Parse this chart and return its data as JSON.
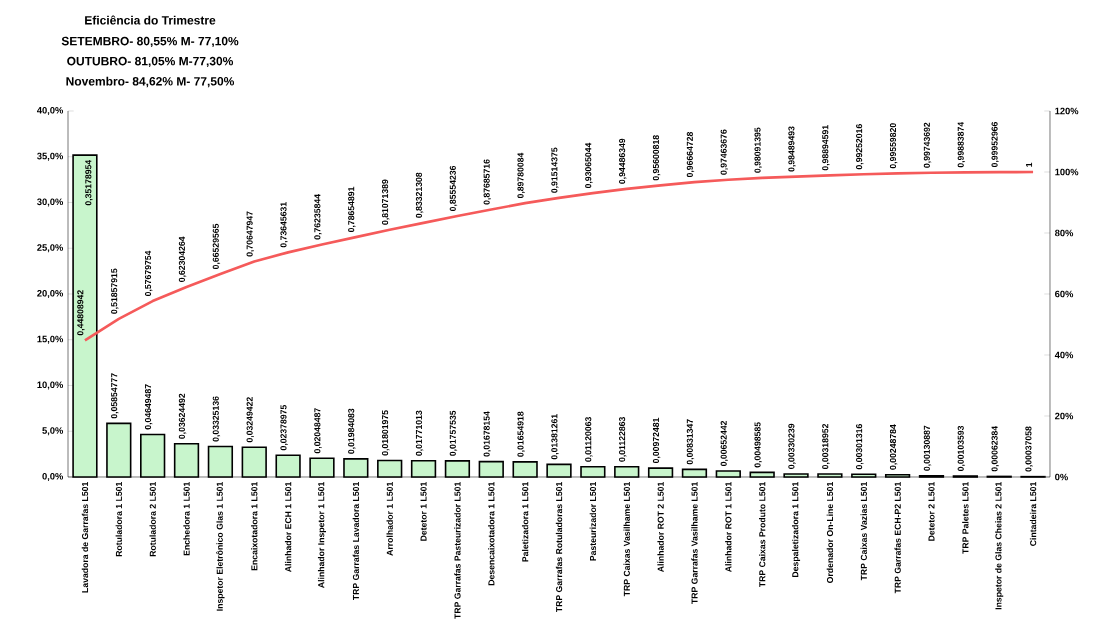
{
  "chart_data": {
    "type": "bar",
    "title": "Eficiência do Trimestre",
    "annotations": [
      "SETEMBRO- 80,55% M- 77,10%",
      "OUTUBRO- 81,05%   M-77,30%",
      "Novembro- 84,62% M- 77,50%"
    ],
    "categories": [
      "Lavadora de Garrafas L501",
      "Rotuladora 1 L501",
      "Rotuladora 2 L501",
      "Enchedora 1 L501",
      "Inspetor Eletrônico Glas 1 L501",
      "Encaixotadora 1 L501",
      "Alinhador ECH 1 L501",
      "Alinhador Inspetor 1 L501",
      "TRP Garrafas Lavadora L501",
      "Arrolhador 1 L501",
      "Detetor 1 L501",
      "TRP Garrafas Pasteurizador L501",
      "Desencaixotadora 1 L501",
      "Paletizadora 1 L501",
      "TRP Garrafas Rotuladoras L501",
      "Pasteurizador L501",
      "TRP Caixas Vasilhame L501",
      "Alinhador ROT 2 L501",
      "TRP Garrafas Vasilhame L501",
      "Alinhador ROT 1 L501",
      "TRP Caixas Produto L501",
      "Despaletizadora 1 L501",
      "Ordenador On-Line L501",
      "TRP Caixas Vazias L501",
      "TRP Garrafas ECH-P2 L501",
      "Detetor 2 L501",
      "TRP Paletes L501",
      "Inspetor de Glas Cheias 2 L501",
      "Cintadeira L501"
    ],
    "series": [
      {
        "color": "#c8f5cc",
        "values": [
          0.35178954,
          0.05854777,
          0.04649487,
          0.03624492,
          0.03325136,
          0.03249422,
          0.02378975,
          0.02048487,
          0.01984083,
          0.01801975,
          0.01771013,
          0.01757535,
          0.01678154,
          0.01654918,
          0.01381261,
          0.01120063,
          0.01122863,
          0.00972481,
          0.00831347,
          0.00652442,
          0.00498585,
          0.00330239,
          0.00318952,
          0.00301316,
          0.00248784,
          0.00130887,
          0.00103593,
          0.00062384,
          0.00037058
        ],
        "value_labels": [
          "0,35178954",
          "0,05854777",
          "0,04649487",
          "0,03624492",
          "0,03325136",
          "0,03249422",
          "0,02378975",
          "0,02048487",
          "0,01984083",
          "0,01801975",
          "0,01771013",
          "0,01757535",
          "0,01678154",
          "0,01654918",
          "0,01381261",
          "0,01120063",
          "0,01122863",
          "0,00972481",
          "0,00831347",
          "0,00652442",
          "0,00498585",
          "0,00330239",
          "0,00318952",
          "0,00301316",
          "0,00248784",
          "0,00130887",
          "0,00103593",
          "0,00062384",
          "0,00037058"
        ]
      },
      {
        "type": "line",
        "axis": "y2",
        "color": "#f55a5a",
        "values": [
          0.44808942,
          0.51857915,
          0.57679754,
          0.62304264,
          0.66529565,
          0.70647947,
          0.73645631,
          0.76235844,
          0.78654891,
          0.81071389,
          0.83321308,
          0.85554236,
          0.87685716,
          0.89780084,
          0.91514375,
          0.93065044,
          0.94486349,
          0.95600818,
          0.96664728,
          0.97463676,
          0.98091395,
          0.98489493,
          0.98894591,
          0.99252016,
          0.9955982,
          0.99743692,
          0.99883874,
          0.99952966,
          1
        ],
        "value_labels": [
          "0,44808942",
          "0,51857915",
          "0,57679754",
          "0,62304264",
          "0,66529565",
          "0,70647947",
          "0,73645631",
          "0,76235844",
          "0,78654891",
          "0,81071389",
          "0,83321308",
          "0,85554236",
          "0,87685716",
          "0,89780084",
          "0,91514375",
          "0,93065044",
          "0,94486349",
          "0,95600818",
          "0,96664728",
          "0,97463676",
          "0,98091395",
          "0,98489493",
          "0,98894591",
          "0,99252016",
          "0,99559820",
          "0,99743692",
          "0,99883874",
          "0,99952966",
          "1"
        ]
      }
    ],
    "ylim": [
      0,
      0.4
    ],
    "yticks": [
      {
        "value": 0,
        "label": "0,0%"
      },
      {
        "value": 0.05,
        "label": "5,0%"
      },
      {
        "value": 0.1,
        "label": "10,0%"
      },
      {
        "value": 0.15,
        "label": "15,0%"
      },
      {
        "value": 0.2,
        "label": "20,0%"
      },
      {
        "value": 0.25,
        "label": "25,0%"
      },
      {
        "value": 0.3,
        "label": "30,0%"
      },
      {
        "value": 0.35,
        "label": "35,0%"
      },
      {
        "value": 0.4,
        "label": "40,0%"
      }
    ],
    "y2lim": [
      0,
      1.2
    ],
    "y2ticks": [
      {
        "value": 0,
        "label": "0%"
      },
      {
        "value": 0.2,
        "label": "20%"
      },
      {
        "value": 0.4,
        "label": "40%"
      },
      {
        "value": 0.6,
        "label": "60%"
      },
      {
        "value": 0.8,
        "label": "80%"
      },
      {
        "value": 1,
        "label": "100%"
      },
      {
        "value": 1.2,
        "label": "120%"
      }
    ]
  }
}
